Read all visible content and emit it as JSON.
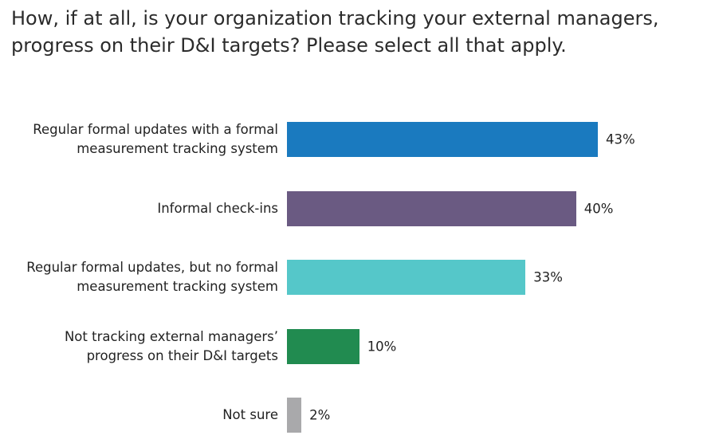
{
  "chart_data": {
    "type": "bar",
    "orientation": "horizontal",
    "title": "How, if at all, is your organization tracking your external managers, progress on their D&I targets? Please select all that apply.",
    "categories": [
      "Regular formal updates with a formal measurement tracking system",
      "Informal check-ins",
      "Regular formal updates, but no formal measurement tracking system",
      "Not tracking external managers’ progress on their D&I targets",
      "Not sure"
    ],
    "values": [
      43,
      40,
      33,
      10,
      2
    ],
    "value_labels": [
      "43%",
      "40%",
      "33%",
      "10%",
      "2%"
    ],
    "colors": [
      "#1a7abf",
      "#6a5a82",
      "#55c7c9",
      "#218b50",
      "#a9a9ab"
    ]
  }
}
